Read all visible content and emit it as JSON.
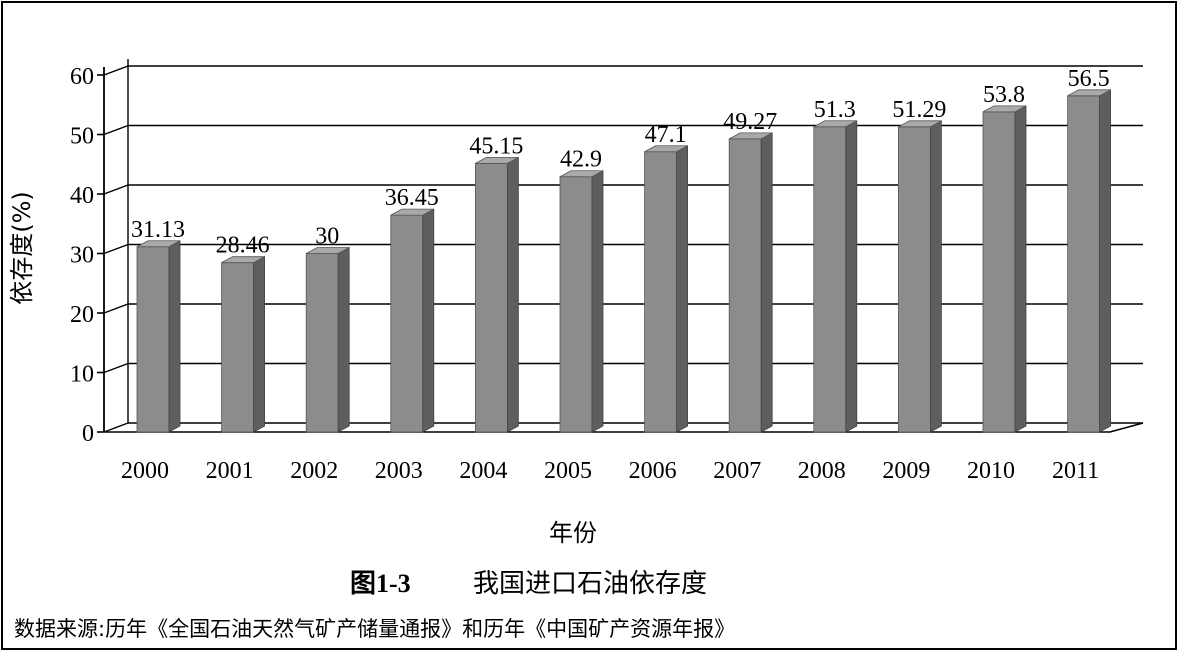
{
  "chart_data": {
    "type": "bar",
    "categories": [
      "2000",
      "2001",
      "2002",
      "2003",
      "2004",
      "2005",
      "2006",
      "2007",
      "2008",
      "2009",
      "2010",
      "2011"
    ],
    "values": [
      31.13,
      28.46,
      30,
      36.45,
      45.15,
      42.9,
      47.1,
      49.27,
      51.3,
      51.29,
      53.8,
      56.5
    ],
    "value_labels": [
      "31.13",
      "28.46",
      "30",
      "36.45",
      "45.15",
      "42.9",
      "47.1",
      "49.27",
      "51.3",
      "51.29",
      "53.8",
      "56.5"
    ],
    "ylabel": "依存度(%)",
    "xlabel": "年份",
    "ylim": [
      0,
      60
    ],
    "yticks": [
      "0",
      "10",
      "20",
      "30",
      "40",
      "50",
      "60"
    ],
    "grid": true,
    "style": "3d",
    "bar_color": "#8c8c8c"
  },
  "caption": {
    "figure_no": "图1-3",
    "title": "我国进口石油依存度",
    "source": "数据来源:历年《全国石油天然气矿产储量通报》和历年《中国矿产资源年报》"
  }
}
